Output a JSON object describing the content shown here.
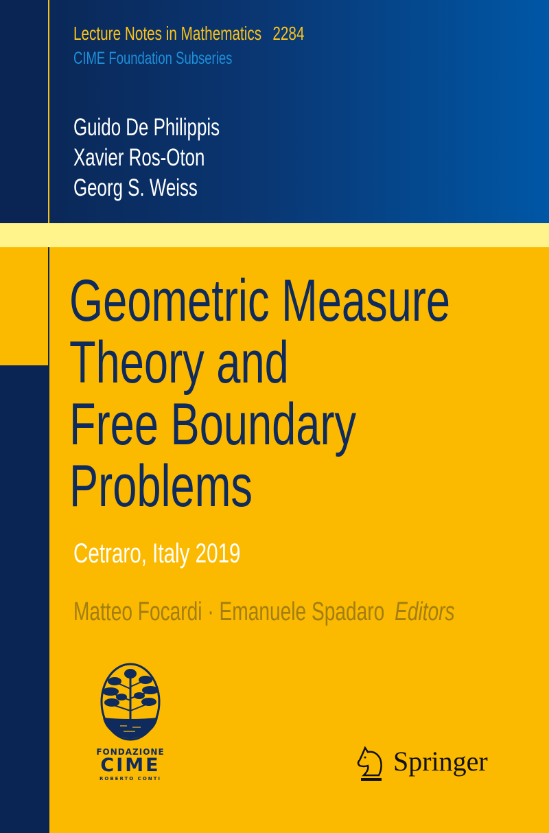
{
  "series": {
    "name": "Lecture Notes in Mathematics",
    "number": "2284",
    "subseries": "CIME Foundation Subseries"
  },
  "authors": [
    "Guido De Philippis",
    "Xavier Ros-Oton",
    "Georg S. Weiss"
  ],
  "title_lines": [
    "Geometric Measure",
    "Theory and",
    "Free Boundary",
    "Problems"
  ],
  "subtitle": "Cetraro, Italy 2019",
  "editors": {
    "names": "Matteo Focardi · Emanuele Spadaro",
    "role": "Editors"
  },
  "cime_logo": {
    "line1": "FONDAZIONE",
    "line2": "CIME",
    "line3": "ROBERTO CONTI",
    "icon": "tree-oval-icon"
  },
  "publisher": {
    "name": "Springer",
    "icon": "knight-horse-icon"
  },
  "colors": {
    "navy": "#0a2553",
    "blue": "#0057a6",
    "yellow": "#fbb900",
    "light_yellow": "#fff38c",
    "title": "#0f2a5c"
  }
}
